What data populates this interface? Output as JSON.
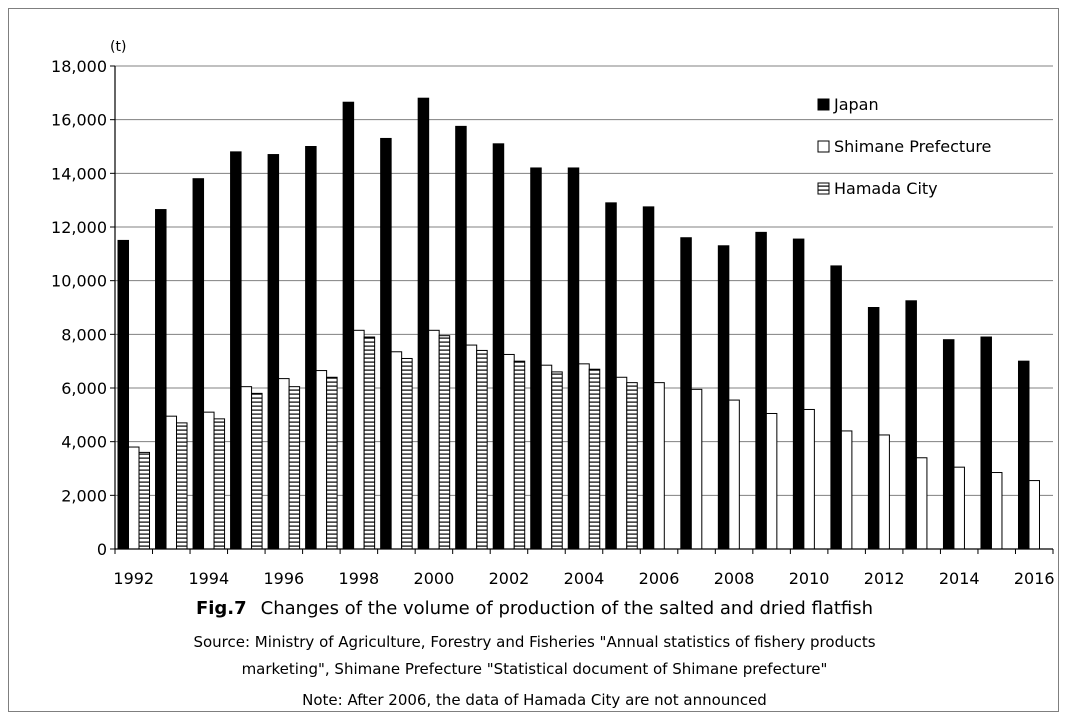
{
  "chart_data": {
    "type": "bar",
    "unit_label": "(t)",
    "x": [
      1992,
      1993,
      1994,
      1995,
      1996,
      1997,
      1998,
      1999,
      2000,
      2001,
      2002,
      2003,
      2004,
      2005,
      2006,
      2007,
      2008,
      2009,
      2010,
      2011,
      2012,
      2013,
      2014,
      2015,
      2016
    ],
    "x_tick_labels": [
      "1992",
      "1994",
      "1996",
      "1998",
      "2000",
      "2002",
      "2004",
      "2006",
      "2008",
      "2010",
      "2012",
      "2014",
      "2016"
    ],
    "y_ticks": [
      "0",
      "2,000",
      "4,000",
      "6,000",
      "8,000",
      "10,000",
      "12,000",
      "14,000",
      "16,000",
      "18,000"
    ],
    "ylim": [
      0,
      18000
    ],
    "legend_position": "top-right",
    "series": [
      {
        "name": "Japan",
        "fill": "#000000",
        "pattern": "solid",
        "values": [
          11500,
          12650,
          13800,
          14800,
          14700,
          15000,
          16650,
          15300,
          16800,
          15750,
          15100,
          14200,
          14200,
          12900,
          12750,
          11600,
          11300,
          11800,
          11550,
          10550,
          9000,
          9250,
          7800,
          7900,
          7000
        ]
      },
      {
        "name": "Shimane Prefecture",
        "fill": "#ffffff",
        "pattern": "hollow",
        "values": [
          3800,
          4950,
          5100,
          6050,
          6350,
          6650,
          8150,
          7350,
          8150,
          7600,
          7250,
          6850,
          6900,
          6400,
          6200,
          5950,
          5550,
          5050,
          5200,
          4400,
          4250,
          3400,
          3050,
          2850,
          2550
        ]
      },
      {
        "name": "Hamada City",
        "fill": "#ffffff",
        "pattern": "horizontal-stripes",
        "values": [
          3600,
          4700,
          4850,
          5800,
          6050,
          6400,
          7900,
          7100,
          7950,
          7400,
          7000,
          6600,
          6700,
          6200,
          null,
          null,
          null,
          null,
          null,
          null,
          null,
          null,
          null,
          null,
          null
        ]
      }
    ]
  },
  "caption": {
    "fig_label": "Fig.7",
    "fig_title": "Changes of the volume of production of the salted and dried  flatfish",
    "source_line1": "Source: Ministry of Agriculture, Forestry and Fisheries \"Annual statistics of fishery products",
    "source_line2": "marketing\", Shimane Prefecture  \"Statistical document of Shimane prefecture\"",
    "note": "Note: After 2006, the data of Hamada City are not announced"
  }
}
